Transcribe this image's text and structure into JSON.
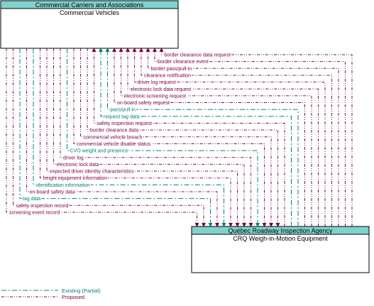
{
  "entities": {
    "top": {
      "group": "Commercial Carriers and Associations",
      "name": "Commercial Vehicles"
    },
    "bottom": {
      "group": "Québec Roadway Inspection Agency",
      "name": "CRQ Weigh-in-Motion Equipment"
    }
  },
  "colors": {
    "existing": "#008080",
    "proposed": "#800040",
    "header_fill": "#7fd3cc"
  },
  "flows": [
    {
      "label": "border clearance data request",
      "status": "proposed",
      "direction": "to_top"
    },
    {
      "label": "border clearance event",
      "status": "proposed",
      "direction": "to_top"
    },
    {
      "label": "border pass/pull-in",
      "status": "proposed",
      "direction": "to_top"
    },
    {
      "label": "clearance notification",
      "status": "proposed",
      "direction": "to_top"
    },
    {
      "label": "driver log request",
      "status": "proposed",
      "direction": "to_top"
    },
    {
      "label": "electronic lock data request",
      "status": "proposed",
      "direction": "to_top"
    },
    {
      "label": "electronic screening request",
      "status": "proposed",
      "direction": "to_top"
    },
    {
      "label": "on-board safety request",
      "status": "proposed",
      "direction": "to_top"
    },
    {
      "label": "pass/pull-in",
      "status": "existing",
      "direction": "to_top"
    },
    {
      "label": "request tag data",
      "status": "existing",
      "direction": "to_top"
    },
    {
      "label": "safety inspection request",
      "status": "proposed",
      "direction": "to_top"
    },
    {
      "label": "border clearance data",
      "status": "proposed",
      "direction": "to_bottom"
    },
    {
      "label": "commercial vehicle breach",
      "status": "proposed",
      "direction": "to_bottom"
    },
    {
      "label": "commercial vehicle disable status",
      "status": "proposed",
      "direction": "to_bottom"
    },
    {
      "label": "CVO weight and presence",
      "status": "existing",
      "direction": "to_bottom"
    },
    {
      "label": "driver log",
      "status": "proposed",
      "direction": "to_bottom"
    },
    {
      "label": "electronic lock data",
      "status": "proposed",
      "direction": "to_bottom"
    },
    {
      "label": "expected driver identity characteristics",
      "status": "proposed",
      "direction": "to_bottom"
    },
    {
      "label": "freight equipment information",
      "status": "proposed",
      "direction": "to_bottom"
    },
    {
      "label": "identification information",
      "status": "existing",
      "direction": "to_bottom"
    },
    {
      "label": "on-board safety data",
      "status": "proposed",
      "direction": "to_bottom"
    },
    {
      "label": "tag data",
      "status": "existing",
      "direction": "to_bottom"
    },
    {
      "label": "safety inspection record",
      "status": "proposed",
      "direction": "to_bottom"
    },
    {
      "label": "screening event record",
      "status": "proposed",
      "direction": "to_bottom"
    }
  ],
  "legend": [
    {
      "label": "Existing (Partial)",
      "status": "existing"
    },
    {
      "label": "Proposed",
      "status": "proposed"
    }
  ]
}
